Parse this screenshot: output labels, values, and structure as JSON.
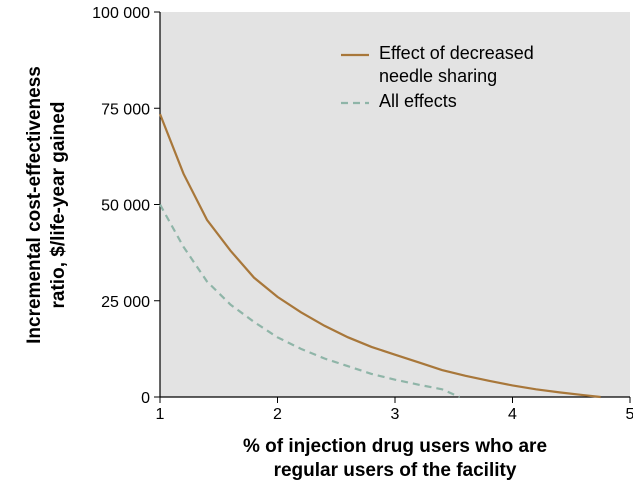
{
  "chart_data": {
    "type": "line",
    "xlabel": "% of injection drug users who are regular users of the facility",
    "ylabel": "Incremental cost-effectiveness ratio, $/life-year gained",
    "xlim": [
      1,
      5
    ],
    "xticks": [
      1,
      2,
      3,
      4,
      5
    ],
    "ylim": [
      0,
      100000
    ],
    "yticks": [
      {
        "value": 0,
        "label": "0"
      },
      {
        "value": 25000,
        "label": "25 000"
      },
      {
        "value": 50000,
        "label": "50 000"
      },
      {
        "value": 75000,
        "label": "75 000"
      },
      {
        "value": 100000,
        "label": "100 000"
      }
    ],
    "series": [
      {
        "name": "Effect of decreased needle sharing",
        "color": "#a8773a",
        "dash": false,
        "x": [
          1,
          1.2,
          1.4,
          1.6,
          1.8,
          2,
          2.2,
          2.4,
          2.6,
          2.8,
          3,
          3.2,
          3.4,
          3.6,
          3.8,
          4,
          4.2,
          4.4,
          4.6,
          4.75
        ],
        "values": [
          73500,
          58000,
          46000,
          38000,
          31000,
          26000,
          22000,
          18500,
          15500,
          13000,
          11000,
          9000,
          7000,
          5500,
          4200,
          3000,
          2000,
          1200,
          500,
          0
        ]
      },
      {
        "name": "All effects",
        "color": "#8fb5a8",
        "dash": true,
        "x": [
          1,
          1.2,
          1.4,
          1.6,
          1.8,
          2,
          2.2,
          2.4,
          2.6,
          2.8,
          3,
          3.2,
          3.4,
          3.55
        ],
        "values": [
          50000,
          39000,
          30000,
          24000,
          19500,
          15500,
          12500,
          10000,
          8000,
          6000,
          4500,
          3200,
          2000,
          0
        ]
      }
    ]
  }
}
